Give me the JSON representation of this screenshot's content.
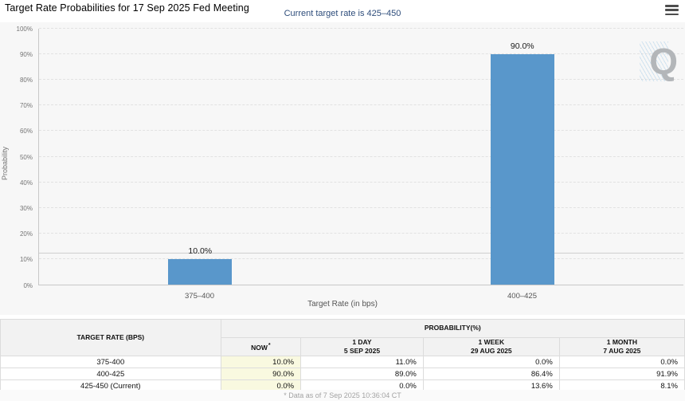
{
  "header": {
    "title": "Target Rate Probabilities for 17 Sep 2025 Fed Meeting"
  },
  "chart_data": {
    "type": "bar",
    "subtitle": "Current target rate is 425–450",
    "subtitle_color": "#2e4d7b",
    "categories": [
      "375–400",
      "400–425"
    ],
    "values": [
      10.0,
      90.0
    ],
    "bar_labels": [
      "10.0%",
      "90.0%"
    ],
    "xlabel": "Target Rate (in bps)",
    "ylabel": "Probability",
    "ylim": [
      0,
      100
    ],
    "ytick_step": 10,
    "ytick_suffix": "%",
    "grid": "horizontal dashed",
    "legend": "none",
    "bar_color": "#5997cb",
    "reference_line_pct": 12.3,
    "watermark_letter": "Q"
  },
  "table": {
    "row_header": "TARGET RATE (BPS)",
    "group_header": "PROBABILITY(%)",
    "now_bg": "#f9f9e0",
    "columns": [
      {
        "label": "NOW",
        "sup": "*",
        "date": ""
      },
      {
        "label": "1 DAY",
        "date": "5 SEP 2025"
      },
      {
        "label": "1 WEEK",
        "date": "29 AUG 2025"
      },
      {
        "label": "1 MONTH",
        "date": "7 AUG 2025"
      }
    ],
    "rows": [
      {
        "label": "375-400",
        "values": [
          "10.0%",
          "11.0%",
          "0.0%",
          "0.0%"
        ]
      },
      {
        "label": "400-425",
        "values": [
          "90.0%",
          "89.0%",
          "86.4%",
          "91.9%"
        ]
      },
      {
        "label": "425-450 (Current)",
        "values": [
          "0.0%",
          "0.0%",
          "13.6%",
          "8.1%"
        ]
      }
    ],
    "footnote": "* Data as of 7 Sep 2025 10:36:04 CT"
  }
}
